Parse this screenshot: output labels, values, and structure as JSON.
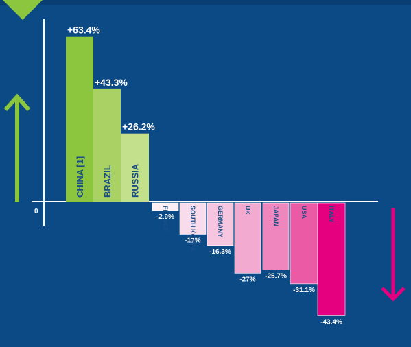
{
  "chart_data": {
    "type": "bar",
    "categories": [
      "CHINA [1]",
      "BRAZIL",
      "RUSSIA",
      "FRANCE",
      "SOUTH KOREA",
      "GERMANY",
      "UK",
      "JAPAN",
      "USA",
      "ITALY"
    ],
    "values": [
      63.4,
      43.3,
      26.2,
      -2.9,
      -12,
      -16.3,
      -27,
      -25.7,
      -31.1,
      -43.4
    ],
    "value_labels": [
      "+63.4%",
      "+43.3%",
      "+26.2%",
      "-2.9%",
      "-12%",
      "-16.3%",
      "-27%",
      "-25.7%",
      "-31.1%",
      "-43.4%"
    ],
    "bar_colors": [
      "#8cc63f",
      "#a9d164",
      "#c3e08c",
      "#fbeef5",
      "#f8dcec",
      "#f6c6e0",
      "#f3aad1",
      "#ef87be",
      "#ea5aa5",
      "#e4007f"
    ],
    "zero_label": "0",
    "grid": false,
    "legend": "none",
    "colors": {
      "background": "#0c4a86",
      "up_arrow": "#8cc63f",
      "down_arrow": "#e4007f",
      "top_band": "#093f73"
    }
  }
}
